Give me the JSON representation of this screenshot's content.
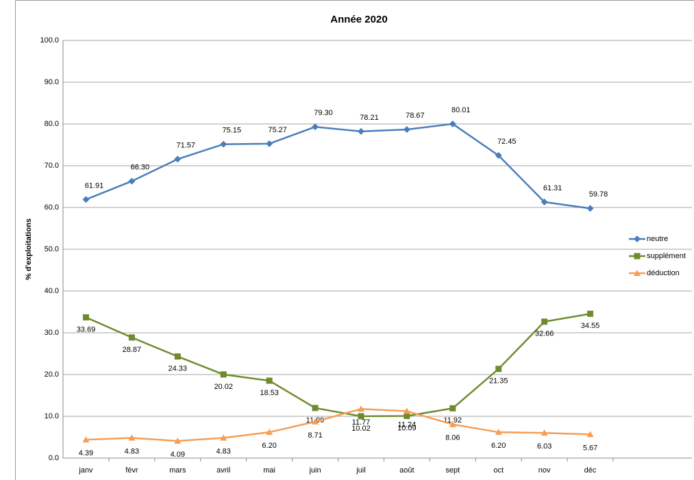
{
  "chart_data": {
    "type": "line",
    "title": "Année 2020",
    "y_label": "% d'exploitations",
    "categories": [
      "janv",
      "févr",
      "mars",
      "avril",
      "mai",
      "juin",
      "juil",
      "août",
      "sept",
      "oct",
      "nov",
      "déc"
    ],
    "series": [
      {
        "name": "neutre",
        "color": "#4a7ebb",
        "marker": "diamond",
        "values": [
          61.91,
          66.3,
          71.57,
          75.15,
          75.27,
          79.3,
          78.21,
          78.67,
          80.01,
          72.45,
          61.31,
          59.78
        ],
        "value_labels": [
          "61.91",
          "66.30",
          "71.57",
          "75.15",
          "75.27",
          "79.30",
          "78.21",
          "78.67",
          "80.01",
          "72.45",
          "61.31",
          "59.78"
        ]
      },
      {
        "name": "supplément",
        "color": "#6e8b2e",
        "marker": "square",
        "values": [
          33.69,
          28.87,
          24.33,
          20.02,
          18.53,
          11.99,
          10.02,
          10.09,
          11.92,
          21.35,
          32.66,
          34.55
        ],
        "value_labels": [
          "33.69",
          "28.87",
          "24.33",
          "20.02",
          "18.53",
          "11.99",
          "10.02",
          "10.09",
          "11.92",
          "21.35",
          "32.66",
          "34.55"
        ]
      },
      {
        "name": "déduction",
        "color": "#f59d56",
        "marker": "triangle",
        "values": [
          4.39,
          4.83,
          4.09,
          4.83,
          6.2,
          8.71,
          11.77,
          11.24,
          8.06,
          6.2,
          6.03,
          5.67
        ],
        "value_labels": [
          "4.39",
          "4.83",
          "4.09",
          "4.83",
          "6.20",
          "8.71",
          "11.77",
          "11.24",
          "8.06",
          "6.20",
          "6.03",
          "5.67"
        ]
      }
    ],
    "ylim": [
      0,
      100
    ],
    "yticks": [
      {
        "value": 0,
        "label": "0.0"
      },
      {
        "value": 10,
        "label": "10.0"
      },
      {
        "value": 20,
        "label": "20.0"
      },
      {
        "value": 30,
        "label": "30.0"
      },
      {
        "value": 40,
        "label": "40.0"
      },
      {
        "value": 50,
        "label": "50.0"
      },
      {
        "value": 60,
        "label": "60.0"
      },
      {
        "value": 70,
        "label": "70.0"
      },
      {
        "value": 80,
        "label": "80.0"
      },
      {
        "value": 90,
        "label": "90.0"
      },
      {
        "value": 100,
        "label": "100.0"
      }
    ],
    "grid": true,
    "legend": "right"
  }
}
